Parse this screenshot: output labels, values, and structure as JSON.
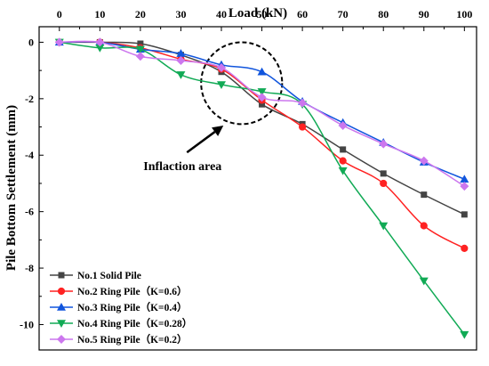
{
  "chart_data": {
    "type": "line",
    "xlabel": "Load (kN)",
    "ylabel": "Pile Bottom Settlement (mm)",
    "xlim": [
      -5,
      103
    ],
    "ylim": [
      -10.9,
      0.55
    ],
    "x_ticks": [
      0,
      10,
      20,
      30,
      40,
      50,
      60,
      70,
      80,
      90,
      100
    ],
    "y_ticks": [
      0,
      -2,
      -4,
      -6,
      -8,
      -10
    ],
    "x_axis_position": "top",
    "grid": false,
    "legend_position": "bottom-left",
    "series": [
      {
        "name": "No.1 Solid Pile",
        "color": "#444444",
        "marker": "square",
        "x": [
          0,
          10,
          20,
          30,
          40,
          50,
          60,
          70,
          80,
          90,
          100
        ],
        "y": [
          0,
          0,
          -0.05,
          -0.45,
          -1.05,
          -2.2,
          -2.9,
          -3.8,
          -4.65,
          -5.4,
          -6.1
        ]
      },
      {
        "name": "No.2 Ring Pile（K=0.6）",
        "color": "#ff2222",
        "marker": "circle",
        "x": [
          0,
          10,
          20,
          30,
          40,
          50,
          60,
          70,
          80,
          90,
          100
        ],
        "y": [
          0,
          0,
          -0.2,
          -0.6,
          -0.95,
          -2.05,
          -3.0,
          -4.2,
          -5.0,
          -6.5,
          -7.3
        ]
      },
      {
        "name": "No.3 Ring Pile（K=0.4）",
        "color": "#1155dd",
        "marker": "triangle-up",
        "x": [
          0,
          10,
          20,
          30,
          40,
          50,
          60,
          70,
          80,
          90,
          100
        ],
        "y": [
          0,
          0,
          -0.25,
          -0.4,
          -0.8,
          -1.05,
          -2.1,
          -2.85,
          -3.55,
          -4.25,
          -4.85
        ]
      },
      {
        "name": "No.4 Ring Pile（K=0.28）",
        "color": "#11aa55",
        "marker": "triangle-down",
        "x": [
          0,
          10,
          20,
          30,
          40,
          50,
          60,
          70,
          80,
          90,
          100
        ],
        "y": [
          0,
          -0.2,
          -0.25,
          -1.15,
          -1.5,
          -1.75,
          -2.2,
          -4.55,
          -6.5,
          -8.45,
          -10.35
        ]
      },
      {
        "name": "No.5 Ring Pile（K=0.2）",
        "color": "#cc77ee",
        "marker": "diamond",
        "x": [
          0,
          10,
          20,
          30,
          40,
          50,
          60,
          70,
          80,
          90,
          100
        ],
        "y": [
          0,
          0,
          -0.5,
          -0.65,
          -0.9,
          -1.95,
          -2.15,
          -2.95,
          -3.6,
          -4.2,
          -5.1
        ]
      }
    ],
    "annotations": [
      {
        "text": "Inflaction area",
        "ellipse_center": [
          45,
          -1.45
        ],
        "ellipse_radius": [
          10,
          1.45
        ],
        "arrow_from": [
          31.5,
          -3.9
        ],
        "arrow_to": [
          40.5,
          -2.95
        ]
      }
    ]
  }
}
